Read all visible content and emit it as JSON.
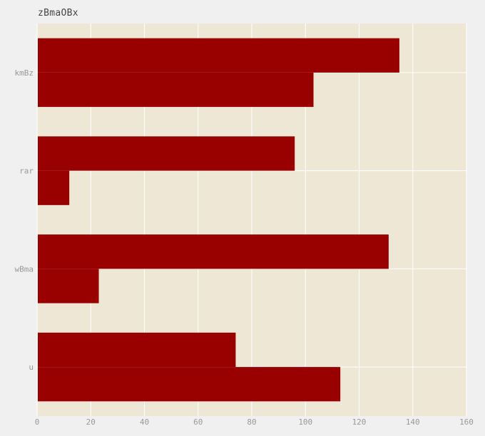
{
  "chart_data": {
    "type": "bar",
    "orientation": "horizontal",
    "title": "zBmaOBx",
    "xlabel": "",
    "ylabel": "",
    "categories": [
      "u",
      "wBma",
      "rar",
      "kmBz"
    ],
    "series": [
      {
        "values": [
          74,
          131,
          96,
          135
        ]
      },
      {
        "values": [
          113,
          23,
          12,
          103
        ]
      }
    ],
    "xlim": [
      0,
      160
    ],
    "xticks": [
      0,
      20,
      40,
      60,
      80,
      100,
      120,
      140,
      160
    ],
    "grid": true,
    "colors": {
      "bar": "#990000",
      "plot_background": "#efe7d6",
      "page_background": "#f0f0f0",
      "grid": "#ffffff",
      "tick_text": "#999999",
      "title_text": "#444444"
    }
  }
}
